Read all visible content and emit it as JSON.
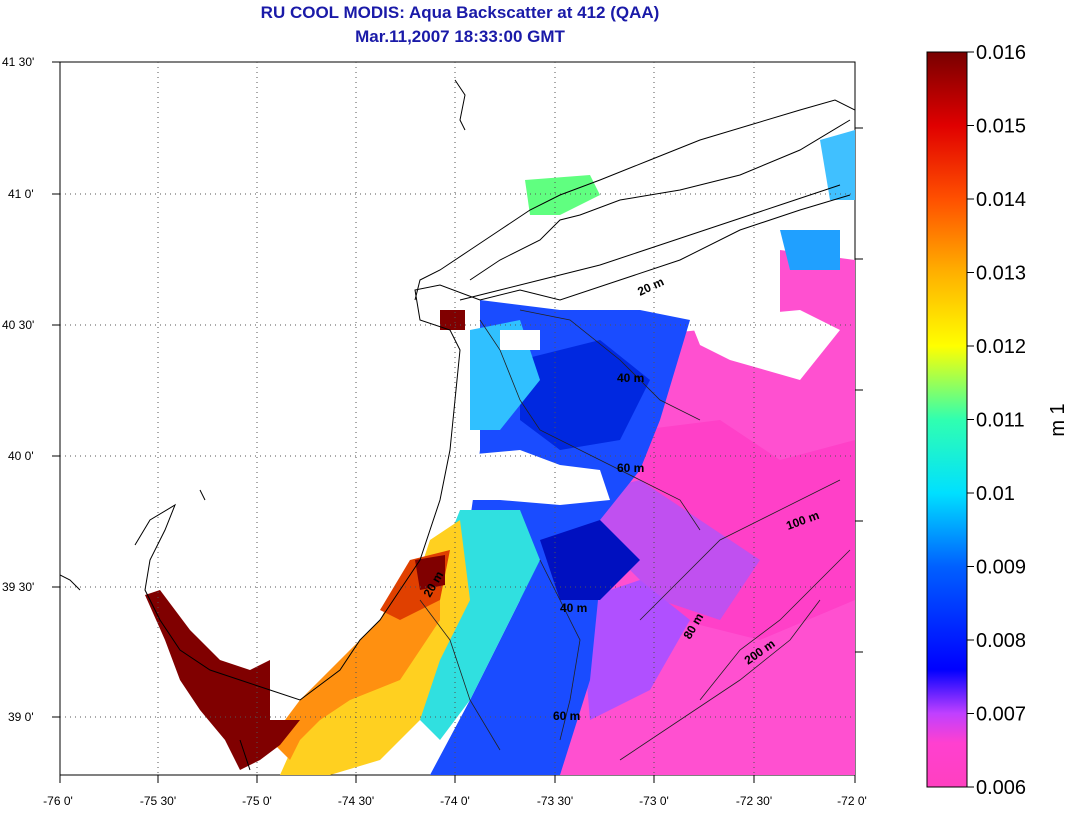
{
  "title": "RU COOL MODIS: Aqua Backscatter at 412 (QAA)",
  "subtitle": "Mar.11,2007 18:33:00 GMT",
  "latitude_labels": [
    "41 30'",
    "41 0'",
    "40 30'",
    "40 0'",
    "39 30'",
    "39 0'"
  ],
  "longitude_labels": [
    "-76 0'",
    "-75 30'",
    "-75 0'",
    "-74 30'",
    "-74 0'",
    "-73 30'",
    "-73 0'",
    "-72 30'",
    "-72 0'"
  ],
  "colorbar": {
    "label": "m 1",
    "ticks": [
      "0.016",
      "0.015",
      "0.014",
      "0.013",
      "0.012",
      "0.011",
      "0.01",
      "0.009",
      "0.008",
      "0.007",
      "0.006"
    ],
    "min": 0.006,
    "max": 0.016,
    "colors": [
      "#ff40c0",
      "#c040ff",
      "#0000ff",
      "#00a0ff",
      "#00ffff",
      "#40ff80",
      "#ffff00",
      "#ffa000",
      "#ff4000",
      "#e00000",
      "#800000"
    ]
  },
  "contour_labels": {
    "c1": "20 m",
    "c2": "40 m",
    "c3": "60 m",
    "c4": "20 m",
    "c5": "40 m",
    "c6": "60 m",
    "c7": "80 m",
    "c8": "100 m",
    "c9": "200 m"
  },
  "colors": {
    "title": "#1a1aa8",
    "land": "#ffffff",
    "coast": "#000000"
  }
}
